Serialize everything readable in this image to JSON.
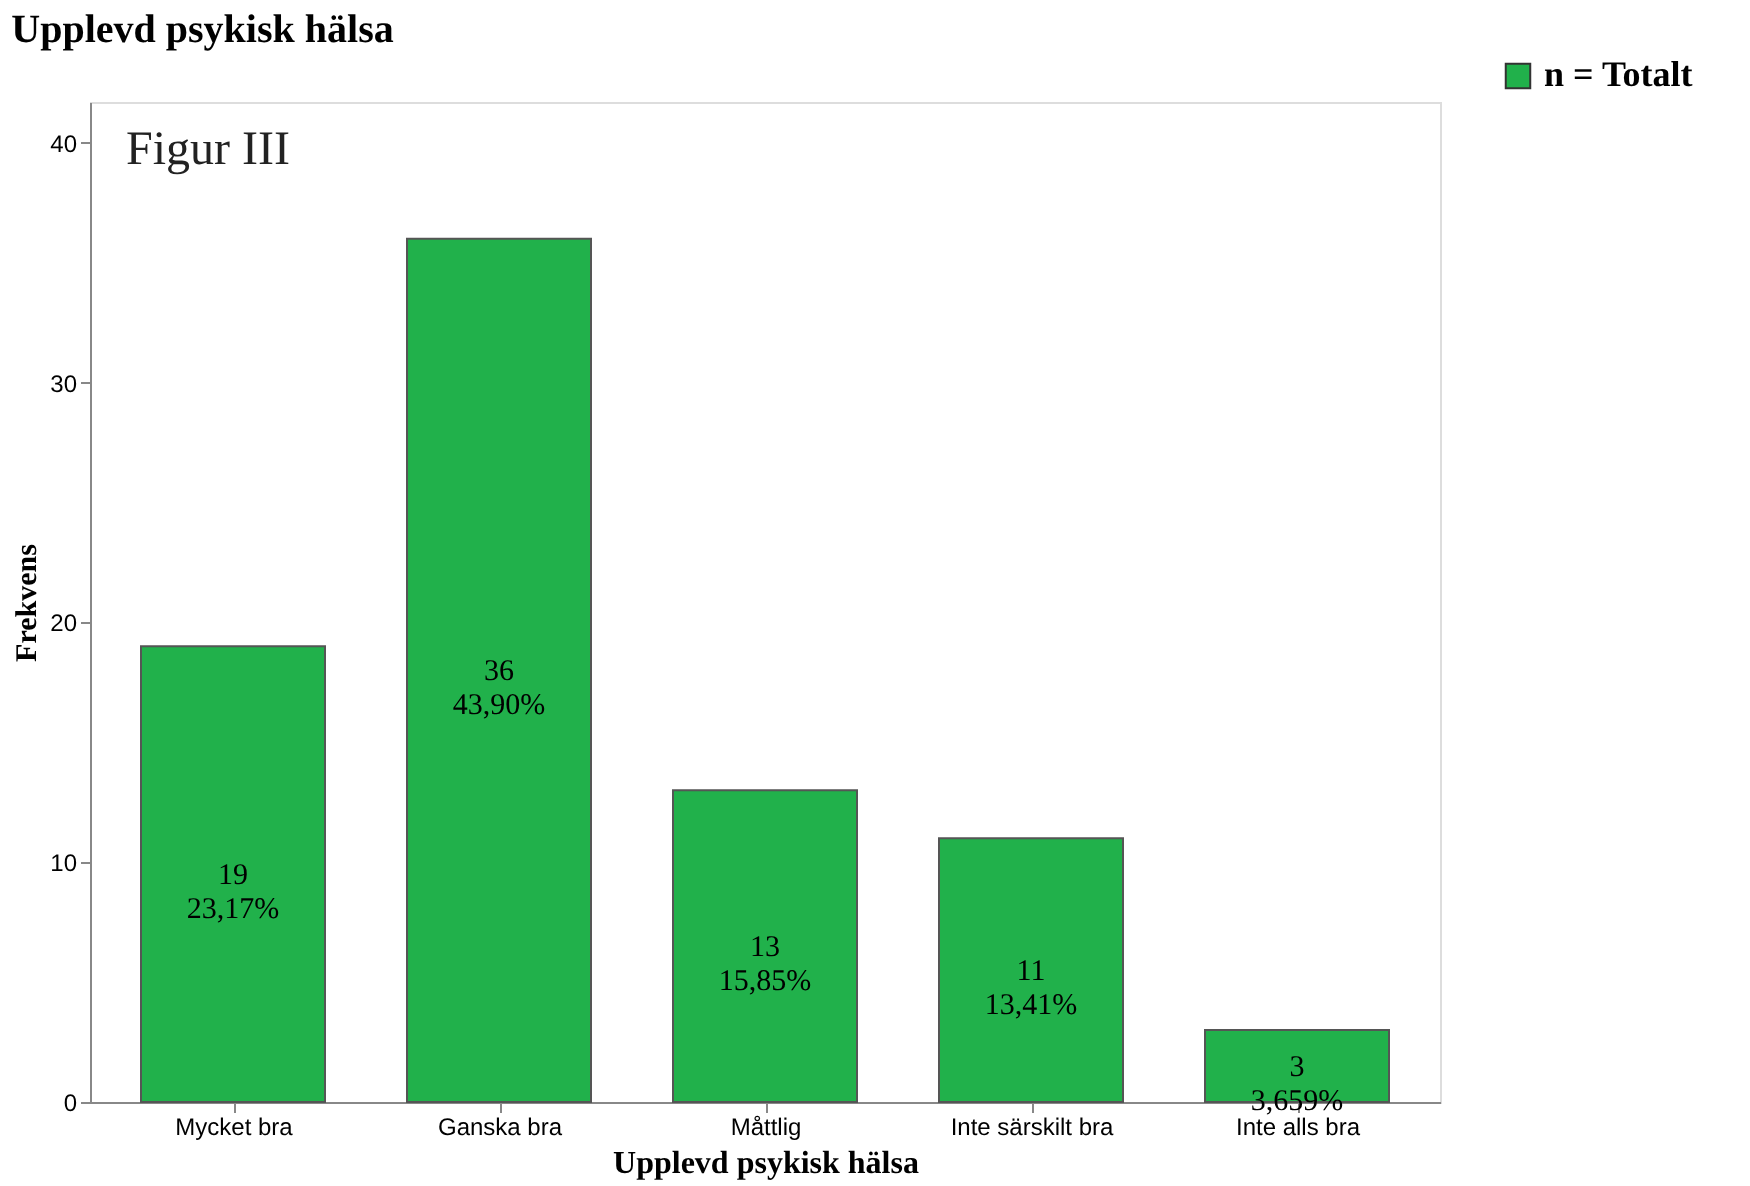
{
  "chart_data": {
    "type": "bar",
    "title": "Upplevd psykisk hälsa",
    "xlabel": "Upplevd psykisk hälsa",
    "ylabel": "Frekvens",
    "categories": [
      "Mycket bra",
      "Ganska bra",
      "Måttlig",
      "Inte särskilt bra",
      "Inte alls bra"
    ],
    "series": [
      {
        "name": "n = Totalt",
        "color": "#21b14b",
        "values": [
          19,
          36,
          13,
          11,
          3
        ],
        "value_labels": [
          "19\n23,17%",
          "36\n43,90%",
          "13\n15,85%",
          "11\n13,41%",
          "3\n3,659%"
        ]
      }
    ],
    "annotations": [
      "Figur III"
    ],
    "ylim": [
      0,
      41.7
    ],
    "yticks": [
      0,
      10,
      20,
      30,
      40
    ],
    "grid": false,
    "legend": "top right"
  }
}
